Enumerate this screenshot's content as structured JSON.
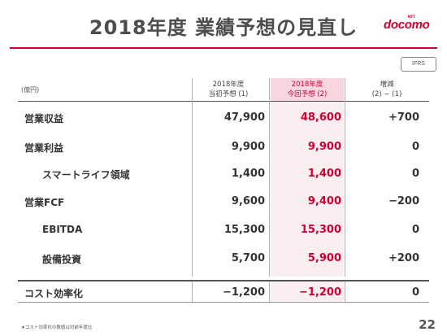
{
  "title": "2018年度 業績予想の見直し",
  "logo": {
    "ntt": "NTT",
    "brand": "docomo"
  },
  "badge": "IFRS",
  "unit": "(億円)",
  "columns": [
    {
      "line1": "2018年度",
      "line2": "当初予想 (1)"
    },
    {
      "line1": "2018年度",
      "line2": "今回予想 (2)"
    },
    {
      "line1": "増減",
      "line2": "(2) − (1)"
    }
  ],
  "rows": [
    {
      "label": "営業収益",
      "initial": "47,900",
      "current": "48,600",
      "change": "+700"
    },
    {
      "label": "営業利益",
      "initial": "9,900",
      "current": "9,900",
      "change": "0"
    },
    {
      "label": "スマートライフ領域",
      "initial": "1,400",
      "current": "1,400",
      "change": "0"
    },
    {
      "label": "営業FCF",
      "initial": "9,600",
      "current": "9,400",
      "change": "−200"
    },
    {
      "label": "EBITDA",
      "initial": "15,300",
      "current": "15,300",
      "change": "0"
    },
    {
      "label": "設備投資",
      "initial": "5,700",
      "current": "5,900",
      "change": "+200"
    },
    {
      "label": "コスト効率化",
      "initial": "−1,200",
      "current": "−1,200",
      "change": "0"
    }
  ],
  "colors": {
    "accent": "#cc0033",
    "highlight_band": "#fbeef1",
    "highlight_head": "#f9d6df"
  },
  "footnote": "★コスト効率化の数値は対前年度比",
  "page_number": "22"
}
